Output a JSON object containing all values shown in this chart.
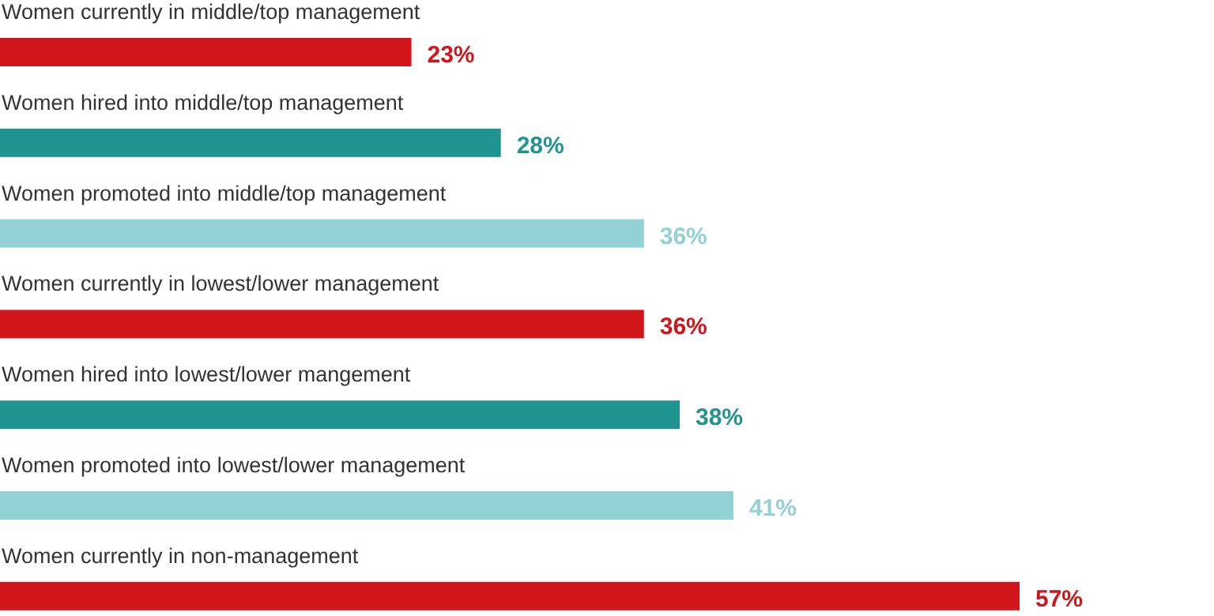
{
  "chart_data": {
    "type": "bar",
    "orientation": "horizontal",
    "categories": [
      "Women currently in middle/top management",
      "Women hired into middle/top management",
      "Women promoted into middle/top management",
      "Women currently in lowest/lower management",
      "Women hired into lowest/lower mangement",
      "Women promoted into lowest/lower management",
      "Women currently in non-management"
    ],
    "values": [
      23,
      28,
      36,
      36,
      38,
      41,
      57
    ],
    "colors": [
      "#d0161b",
      "#1f9490",
      "#92d1d4",
      "#d0161b",
      "#1f9490",
      "#92d1d4",
      "#d0161b"
    ],
    "value_labels": [
      "23%",
      "28%",
      "36%",
      "36%",
      "38%",
      "41%",
      "57%"
    ]
  }
}
